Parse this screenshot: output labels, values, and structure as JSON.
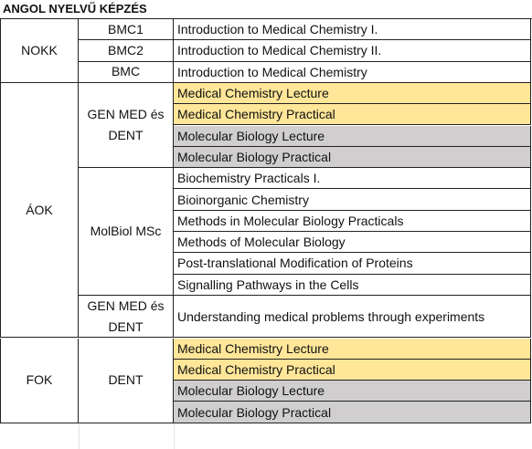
{
  "title": "ANGOL NYELVŰ KÉPZÉS",
  "sections": [
    {
      "name": "NOKK",
      "groups": [
        {
          "name": "BMC1",
          "courses": [
            {
              "label": "Introduction to Medical Chemistry I.",
              "color": "#ffffff"
            }
          ]
        },
        {
          "name": "BMC2",
          "courses": [
            {
              "label": "Introduction to Medical Chemistry II.",
              "color": "#ffffff"
            }
          ]
        },
        {
          "name": "BMC",
          "courses": [
            {
              "label": "Introduction to Medical Chemistry",
              "color": "#ffffff"
            }
          ]
        }
      ]
    },
    {
      "name": "ÁOK",
      "groups": [
        {
          "name": "GEN MED és DENT",
          "courses": [
            {
              "label": "Medical Chemistry Lecture",
              "color": "#ffe699"
            },
            {
              "label": "Medical Chemistry Practical",
              "color": "#ffe699"
            },
            {
              "label": "Molecular Biology Lecture",
              "color": "#d0cece"
            },
            {
              "label": "Molecular Biology Practical",
              "color": "#d0cece"
            }
          ]
        },
        {
          "name": "MolBiol MSc",
          "courses": [
            {
              "label": "Biochemistry Practicals I.",
              "color": "#ffffff"
            },
            {
              "label": "Bioinorganic Chemistry",
              "color": "#ffffff"
            },
            {
              "label": "Methods in Molecular Biology Practicals",
              "color": "#ffffff"
            },
            {
              "label": "Methods of Molecular Biology",
              "color": "#ffffff"
            },
            {
              "label": "Post-translational Modification of Proteins",
              "color": "#ffffff"
            },
            {
              "label": "Signalling Pathways in the Cells",
              "color": "#ffffff"
            }
          ]
        },
        {
          "name": "GEN MED és DENT",
          "courses": [
            {
              "label": "Understanding medical problems through experiments",
              "color": "#ffffff"
            }
          ]
        }
      ]
    },
    {
      "name": "FOK",
      "groups": [
        {
          "name": "DENT",
          "courses": [
            {
              "label": "Medical Chemistry Lecture",
              "color": "#ffe699"
            },
            {
              "label": "Medical Chemistry Practical",
              "color": "#ffe699"
            },
            {
              "label": "Molecular Biology Lecture",
              "color": "#d0cece"
            },
            {
              "label": "Molecular Biology Practical",
              "color": "#d0cece"
            }
          ]
        }
      ]
    }
  ]
}
